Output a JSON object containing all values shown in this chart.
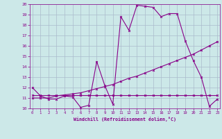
{
  "xlabel": "Windchill (Refroidissement éolien,°C)",
  "bg_color": "#cce8e8",
  "grid_color": "#aabbcc",
  "line_color": "#880088",
  "x_min": 0,
  "x_max": 23,
  "y_min": 10,
  "y_max": 20,
  "series1_x": [
    0,
    1,
    2,
    3,
    4,
    5,
    6,
    7,
    8,
    9,
    10,
    11,
    12,
    13,
    14,
    15,
    16,
    17,
    18,
    19,
    20,
    21,
    22,
    23
  ],
  "series1_y": [
    12.0,
    11.2,
    10.9,
    10.9,
    11.2,
    11.1,
    10.1,
    10.3,
    14.5,
    12.2,
    10.4,
    18.8,
    17.5,
    19.9,
    19.8,
    19.7,
    18.8,
    19.1,
    19.1,
    16.5,
    14.6,
    13.0,
    10.2,
    10.9
  ],
  "series2_x": [
    0,
    1,
    2,
    3,
    4,
    5,
    6,
    7,
    8,
    9,
    10,
    11,
    12,
    13,
    14,
    15,
    16,
    17,
    18,
    19,
    20,
    21,
    22,
    23
  ],
  "series2_y": [
    11.0,
    11.0,
    11.0,
    11.2,
    11.3,
    11.4,
    11.5,
    11.7,
    11.9,
    12.1,
    12.3,
    12.6,
    12.9,
    13.1,
    13.4,
    13.7,
    14.0,
    14.3,
    14.6,
    14.9,
    15.2,
    15.6,
    16.0,
    16.4
  ],
  "series3_x": [
    0,
    1,
    2,
    3,
    4,
    5,
    6,
    7,
    8,
    9,
    10,
    11,
    12,
    13,
    14,
    15,
    16,
    17,
    18,
    19,
    20,
    21,
    22,
    23
  ],
  "series3_y": [
    11.3,
    11.3,
    11.3,
    11.3,
    11.3,
    11.3,
    11.3,
    11.3,
    11.3,
    11.3,
    11.3,
    11.3,
    11.3,
    11.3,
    11.3,
    11.3,
    11.3,
    11.3,
    11.3,
    11.3,
    11.3,
    11.3,
    11.3,
    11.3
  ]
}
